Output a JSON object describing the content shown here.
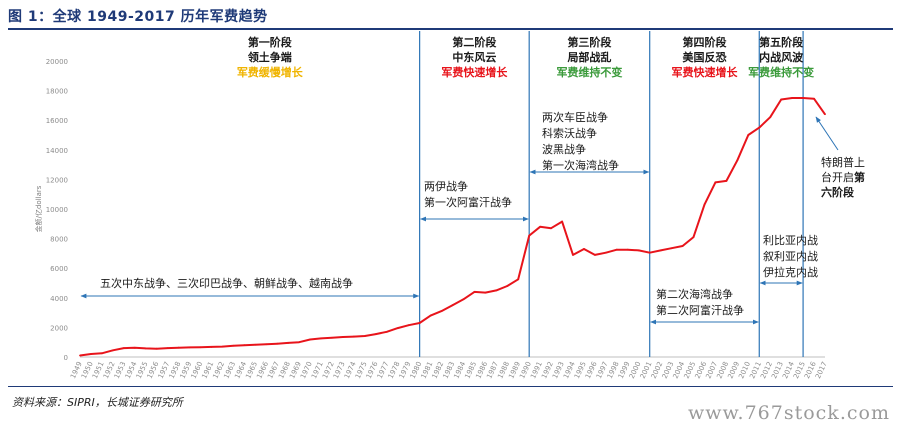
{
  "figure_title": "图 1：全球 1949-2017 历年军费趋势",
  "source": "资料来源：SIPRI，长城证券研究所",
  "watermark": "www.767stock.com",
  "colors": {
    "line": "#e8141b",
    "divider": "#2e75b6",
    "arrow": "#2e75b6",
    "title": "#1f3a78",
    "growth_slow": "#f0b400",
    "growth_fast": "#e8141b",
    "stable": "#3a9a3a"
  },
  "chart_data": {
    "type": "line",
    "title": "",
    "xlabel": "",
    "ylabel": "金额/亿dollars",
    "ylim": [
      0,
      20000
    ],
    "yticks": [
      0,
      2000,
      4000,
      6000,
      8000,
      10000,
      12000,
      14000,
      16000,
      18000,
      20000
    ],
    "grid": false,
    "x": [
      1949,
      1950,
      1951,
      1952,
      1953,
      1954,
      1955,
      1956,
      1957,
      1958,
      1959,
      1960,
      1961,
      1962,
      1963,
      1964,
      1965,
      1966,
      1967,
      1968,
      1969,
      1970,
      1971,
      1972,
      1973,
      1974,
      1975,
      1976,
      1977,
      1978,
      1979,
      1980,
      1981,
      1982,
      1983,
      1984,
      1985,
      1986,
      1987,
      1988,
      1989,
      1990,
      1991,
      1992,
      1993,
      1994,
      1995,
      1996,
      1997,
      1998,
      1999,
      2000,
      2001,
      2002,
      2003,
      2004,
      2005,
      2006,
      2007,
      2008,
      2009,
      2010,
      2011,
      2012,
      2013,
      2014,
      2015,
      2016,
      2017
    ],
    "series": [
      {
        "values": [
          100,
          200,
          250,
          450,
          600,
          620,
          580,
          560,
          600,
          630,
          650,
          660,
          680,
          700,
          760,
          800,
          830,
          860,
          900,
          950,
          1000,
          1180,
          1260,
          1300,
          1350,
          1380,
          1420,
          1550,
          1700,
          1950,
          2150,
          2300,
          2800,
          3100,
          3500,
          3900,
          4400,
          4350,
          4500,
          4800,
          5250,
          8200,
          8800,
          8700,
          9150,
          6900,
          7300,
          6900,
          7050,
          7250,
          7250,
          7200,
          7050,
          7200,
          7350,
          7500,
          8100,
          10300,
          11800,
          11900,
          13300,
          15000,
          15500,
          16200,
          17400,
          17500,
          17500,
          17450,
          16400
        ]
      }
    ],
    "dividers": [
      1980,
      1990,
      2001,
      2011,
      2015
    ],
    "phases": [
      {
        "name": "第一阶段",
        "topic": "领土争端",
        "trend": "军费缓慢增长",
        "trend_color": "#f0b400"
      },
      {
        "name": "第二阶段",
        "topic": "中东风云",
        "trend": "军费快速增长",
        "trend_color": "#e8141b"
      },
      {
        "name": "第三阶段",
        "topic": "局部战乱",
        "trend": "军费维持不变",
        "trend_color": "#3a9a3a"
      },
      {
        "name": "第四阶段",
        "topic": "美国反恐",
        "trend": "军费快速增长",
        "trend_color": "#e8141b"
      },
      {
        "name": "第五阶段",
        "topic": "内战风波",
        "trend": "军费维持不变",
        "trend_color": "#3a9a3a"
      }
    ],
    "annotations": {
      "wars_1": [
        "五次中东战争、三次印巴战争、朝鲜战争、越南战争"
      ],
      "wars_2": [
        "两伊战争",
        "第一次阿富汗战争"
      ],
      "wars_3": [
        "两次车臣战争",
        "科索沃战争",
        "波黑战争",
        "第一次海湾战争"
      ],
      "wars_4": [
        "第二次海湾战争",
        "第二次阿富汗战争"
      ],
      "wars_5": [
        "利比亚内战",
        "叙利亚内战",
        "伊拉克内战"
      ],
      "trump_prefix": "特朗普上",
      "trump_mid": "台开启",
      "trump_bold1": "第",
      "trump_bold2": "六阶段"
    }
  }
}
